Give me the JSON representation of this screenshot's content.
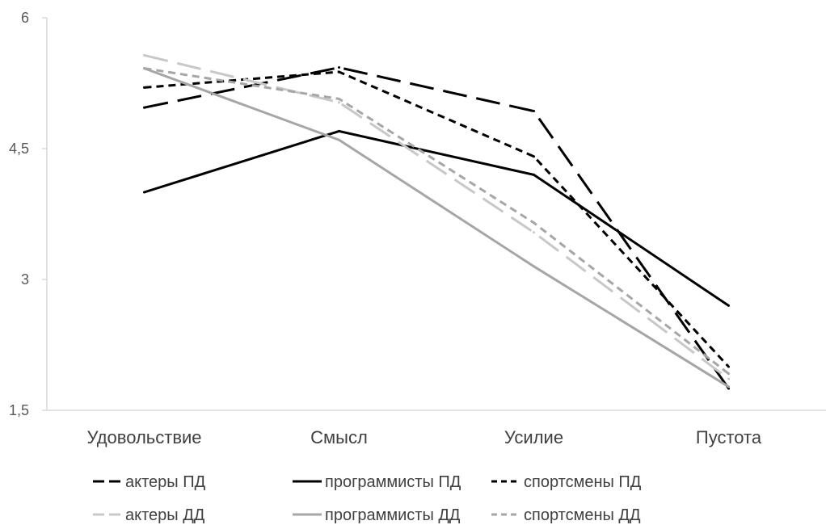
{
  "chart_data": {
    "type": "line",
    "title": "",
    "xlabel": "",
    "ylabel": "",
    "categories": [
      "Удовольствие",
      "Смысл",
      "Усилие",
      "Пустота"
    ],
    "y_ticks": [
      "1,5",
      "3",
      "4,5",
      "6"
    ],
    "ylim": [
      1.5,
      6
    ],
    "grid": false,
    "legend_position": "bottom",
    "series": [
      {
        "name": "актеры ПД",
        "values": [
          4.97,
          5.43,
          4.93,
          1.75
        ],
        "color": "#000000",
        "dash": "long"
      },
      {
        "name": "программисты ПД",
        "values": [
          4.0,
          4.7,
          4.2,
          2.7
        ],
        "color": "#000000",
        "dash": "solid"
      },
      {
        "name": "спортсмены ПД",
        "values": [
          5.2,
          5.38,
          4.41,
          2.0
        ],
        "color": "#000000",
        "dash": "short"
      },
      {
        "name": "актеры ДД",
        "values": [
          5.57,
          5.03,
          3.54,
          1.86
        ],
        "color": "#c8c8c8",
        "dash": "long"
      },
      {
        "name": "программисты ДД",
        "values": [
          5.42,
          4.6,
          3.15,
          1.77
        ],
        "color": "#a6a6a6",
        "dash": "solid"
      },
      {
        "name": "спортсмены ДД",
        "values": [
          5.42,
          5.07,
          3.65,
          1.92
        ],
        "color": "#a6a6a6",
        "dash": "short"
      }
    ]
  }
}
